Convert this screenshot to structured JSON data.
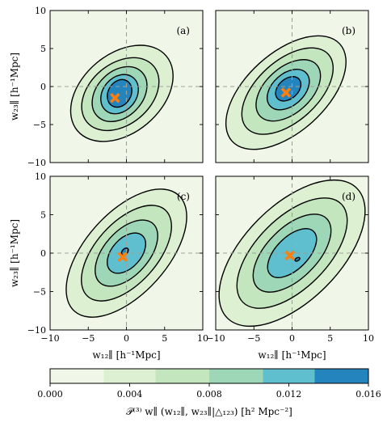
{
  "chart_data": {
    "type": "contour",
    "layout": "2x2 panels with shared colorbar",
    "xlabel": "w₁₂∥ [h⁻¹Mpc]",
    "ylabel": "w₂₃∥ [h⁻¹Mpc]",
    "xlim": [
      -10,
      10
    ],
    "ylim": [
      -10,
      10
    ],
    "xticks": [
      -10,
      -5,
      0,
      5,
      10
    ],
    "yticks": [
      -10,
      -5,
      0,
      5,
      10
    ],
    "xtick_labels": [
      "−10",
      "−5",
      "0",
      "5",
      "10"
    ],
    "ytick_labels": [
      "−10",
      "−5",
      "0",
      "5",
      "10"
    ],
    "reference_lines": {
      "x": 0,
      "y": 0,
      "style": "dashed"
    },
    "colorbar": {
      "label": "𝒫⁽³⁾ w∥ (w₁₂∥, w₂₃∥|△₁₂₃)  [h² Mpc⁻²]",
      "levels": [
        0.0,
        0.0027,
        0.0053,
        0.008,
        0.0107,
        0.0133,
        0.016
      ],
      "colors": [
        "#f1f7e8",
        "#ddf0d2",
        "#c4e6be",
        "#9dd7b8",
        "#5fbfce",
        "#2484be"
      ],
      "tick_values": [
        0.0,
        0.004,
        0.008,
        0.012,
        0.016
      ],
      "tick_labels": [
        "0.000",
        "0.004",
        "0.008",
        "0.012",
        "0.016"
      ],
      "range": [
        0.0,
        0.016
      ]
    },
    "panels": [
      {
        "label": "(a)",
        "peak": [
          -1.5,
          -1.5
        ],
        "contours": [
          {
            "level": 0.0027,
            "cx": -0.6,
            "cy": -0.9,
            "a": 7.6,
            "b": 5.2,
            "angle": -40
          },
          {
            "level": 0.0053,
            "cx": -0.8,
            "cy": -1.0,
            "a": 5.7,
            "b": 4.0,
            "angle": -40
          },
          {
            "level": 0.008,
            "cx": -0.9,
            "cy": -1.0,
            "a": 4.1,
            "b": 3.0,
            "angle": -45
          },
          {
            "level": 0.0107,
            "cx": -0.9,
            "cy": -1.0,
            "a": 2.8,
            "b": 2.2,
            "angle": -50
          },
          {
            "level": 0.0133,
            "cx": -0.9,
            "cy": -0.9,
            "a": 1.9,
            "b": 1.5,
            "angle": -60
          }
        ]
      },
      {
        "label": "(b)",
        "peak": [
          -0.8,
          -0.8
        ],
        "contours": [
          {
            "level": 0.0027,
            "cx": -0.8,
            "cy": -0.8,
            "a": 9.5,
            "b": 5.2,
            "angle": -42
          },
          {
            "level": 0.0053,
            "cx": -0.6,
            "cy": -0.6,
            "a": 7.2,
            "b": 4.0,
            "angle": -42
          },
          {
            "level": 0.008,
            "cx": -0.5,
            "cy": -0.5,
            "a": 5.0,
            "b": 3.0,
            "angle": -42
          },
          {
            "level": 0.0107,
            "cx": -0.5,
            "cy": -0.4,
            "a": 3.2,
            "b": 2.1,
            "angle": -42
          },
          {
            "level": 0.0133,
            "cx": -0.5,
            "cy": -0.3,
            "a": 1.9,
            "b": 1.3,
            "angle": -42
          }
        ]
      },
      {
        "label": "(c)",
        "peak": [
          -0.5,
          -0.5
        ],
        "contours": [
          {
            "level": 0.0027,
            "cx": 0.0,
            "cy": 0.0,
            "a": 10.2,
            "b": 5.3,
            "angle": -48
          },
          {
            "level": 0.0053,
            "cx": 0.0,
            "cy": 0.0,
            "a": 7.6,
            "b": 4.0,
            "angle": -48
          },
          {
            "level": 0.008,
            "cx": 0.0,
            "cy": 0.0,
            "a": 5.2,
            "b": 2.9,
            "angle": -48
          },
          {
            "level": 0.0107,
            "cx": 0.0,
            "cy": 0.0,
            "a": 3.1,
            "b": 1.9,
            "angle": -48
          },
          {
            "level": 0.0133,
            "cx": -0.2,
            "cy": 0.2,
            "a": 0.55,
            "b": 0.35,
            "angle": -48
          }
        ]
      },
      {
        "label": "(d)",
        "peak": [
          -0.3,
          -0.3
        ],
        "contours": [
          {
            "level": 0.0027,
            "cx": 0.0,
            "cy": 0.0,
            "a": 12.0,
            "b": 6.2,
            "angle": -45
          },
          {
            "level": 0.0053,
            "cx": 0.0,
            "cy": 0.0,
            "a": 9.1,
            "b": 4.6,
            "angle": -45
          },
          {
            "level": 0.008,
            "cx": 0.0,
            "cy": 0.0,
            "a": 6.4,
            "b": 3.3,
            "angle": -45
          },
          {
            "level": 0.0107,
            "cx": 0.0,
            "cy": 0.0,
            "a": 4.0,
            "b": 2.1,
            "angle": -45
          },
          {
            "level": 0.0133,
            "cx": 0.7,
            "cy": -0.8,
            "a": 0.35,
            "b": 0.2,
            "angle": -30
          }
        ]
      }
    ]
  }
}
